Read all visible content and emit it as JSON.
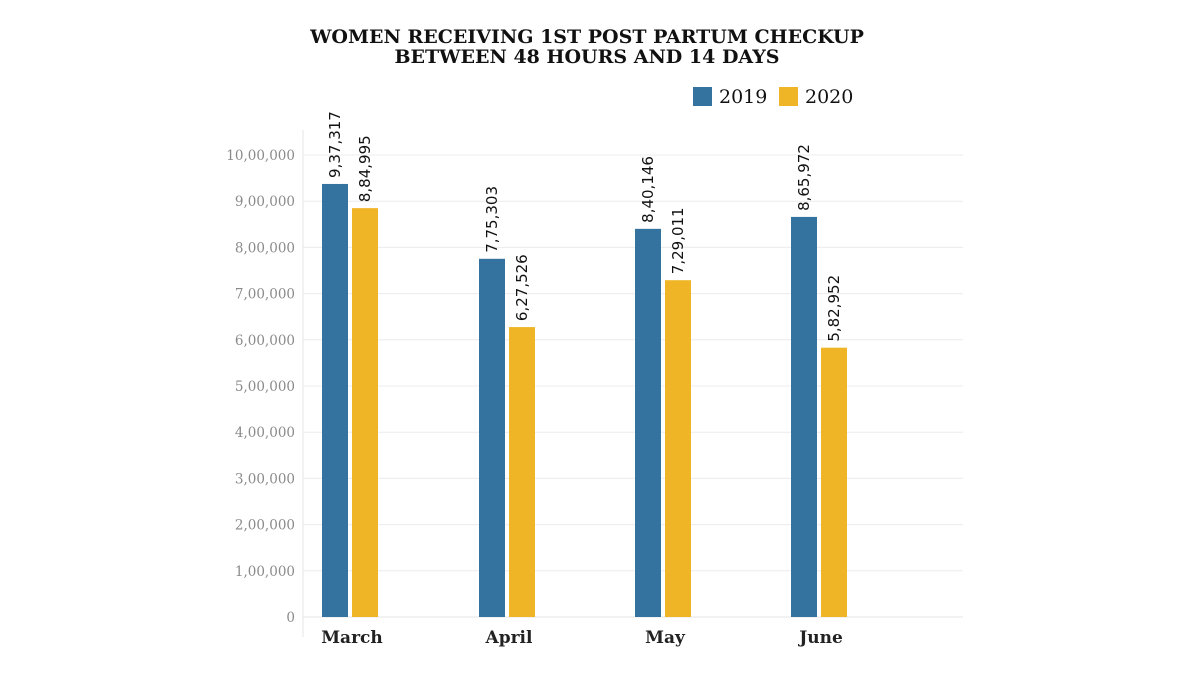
{
  "chart_data": {
    "type": "bar",
    "title": "WOMEN RECEIVING 1ST POST PARTUM CHECKUP",
    "subtitle": "BETWEEN 48 HOURS AND 14 DAYS",
    "categories": [
      "March",
      "April",
      "May",
      "June"
    ],
    "series": [
      {
        "name": "2019",
        "color": "#34729f",
        "values": [
          937317,
          775303,
          840146,
          865972
        ],
        "labels": [
          "9,37,317",
          "7,75,303",
          "8,40,146",
          "8,65,972"
        ]
      },
      {
        "name": "2020",
        "color": "#efb526",
        "values": [
          884995,
          627526,
          729011,
          582952
        ],
        "labels": [
          "8,84,995",
          "6,27,526",
          "7,29,011",
          "5,82,952"
        ]
      }
    ],
    "ylim": [
      0,
      1000000
    ],
    "yticks": [
      {
        "value": 0,
        "label": "0"
      },
      {
        "value": 100000,
        "label": "1,00,000"
      },
      {
        "value": 200000,
        "label": "2,00,000"
      },
      {
        "value": 300000,
        "label": "3,00,000"
      },
      {
        "value": 400000,
        "label": "4,00,000"
      },
      {
        "value": 500000,
        "label": "5,00,000"
      },
      {
        "value": 600000,
        "label": "6,00,000"
      },
      {
        "value": 700000,
        "label": "7,00,000"
      },
      {
        "value": 800000,
        "label": "8,00,000"
      },
      {
        "value": 900000,
        "label": "9,00,000"
      },
      {
        "value": 1000000,
        "label": "10,00,000"
      }
    ],
    "xlabel": "",
    "ylabel": "",
    "grid": true,
    "legend_position": "top-right"
  }
}
